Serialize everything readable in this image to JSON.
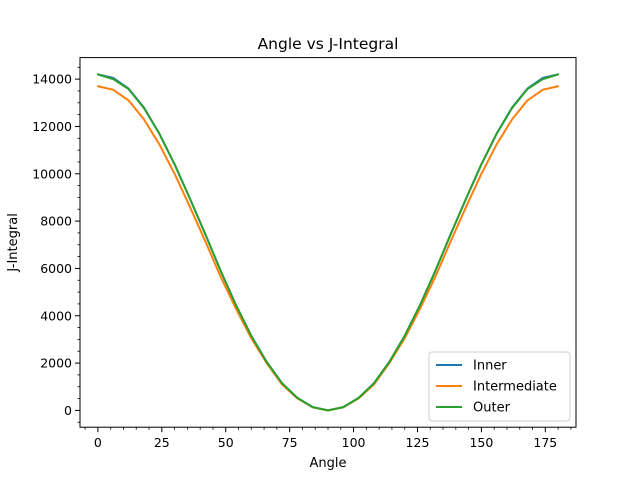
{
  "chart_data": {
    "type": "line",
    "title": "Angle vs J-Integral",
    "xlabel": "Angle",
    "ylabel": "J-Integral",
    "xlim": [
      -7,
      187
    ],
    "ylim": [
      -710,
      14910
    ],
    "xticks": [
      0,
      25,
      50,
      75,
      100,
      125,
      150,
      175
    ],
    "yticks": [
      0,
      2000,
      4000,
      6000,
      8000,
      10000,
      12000,
      14000
    ],
    "xtick_labels": [
      "0",
      "25",
      "50",
      "75",
      "100",
      "125",
      "150",
      "175"
    ],
    "ytick_labels": [
      "0",
      "2000",
      "4000",
      "6000",
      "8000",
      "10000",
      "12000",
      "14000"
    ],
    "grid": false,
    "legend_position": "lower-right",
    "x": [
      0,
      6,
      12,
      18,
      24,
      30,
      36,
      42,
      48,
      54,
      60,
      66,
      72,
      78,
      84,
      90,
      96,
      102,
      108,
      114,
      120,
      126,
      132,
      138,
      144,
      150,
      156,
      162,
      168,
      174,
      180
    ],
    "series": [
      {
        "name": "Inner",
        "color": "#1f77b4",
        "values": [
          14200,
          14050,
          13600,
          12800,
          11700,
          10400,
          8950,
          7450,
          5900,
          4450,
          3150,
          2050,
          1150,
          530,
          140,
          0,
          140,
          530,
          1150,
          2050,
          3150,
          4450,
          5900,
          7450,
          8950,
          10400,
          11700,
          12800,
          13600,
          14050,
          14200
        ]
      },
      {
        "name": "Intermediate",
        "color": "#ff7f0e",
        "values": [
          13700,
          13550,
          13100,
          12300,
          11250,
          10000,
          8600,
          7150,
          5650,
          4300,
          3050,
          2000,
          1100,
          510,
          130,
          0,
          130,
          510,
          1100,
          2000,
          3050,
          4300,
          5650,
          7150,
          8600,
          10000,
          11250,
          12300,
          13100,
          13550,
          13700
        ]
      },
      {
        "name": "Outer",
        "color": "#2ca02c",
        "values": [
          14200,
          14000,
          13580,
          12780,
          11700,
          10400,
          8950,
          7450,
          5900,
          4450,
          3150,
          2050,
          1150,
          530,
          140,
          0,
          140,
          530,
          1150,
          2050,
          3150,
          4450,
          5900,
          7450,
          8950,
          10400,
          11700,
          12780,
          13580,
          14000,
          14200
        ]
      }
    ]
  }
}
